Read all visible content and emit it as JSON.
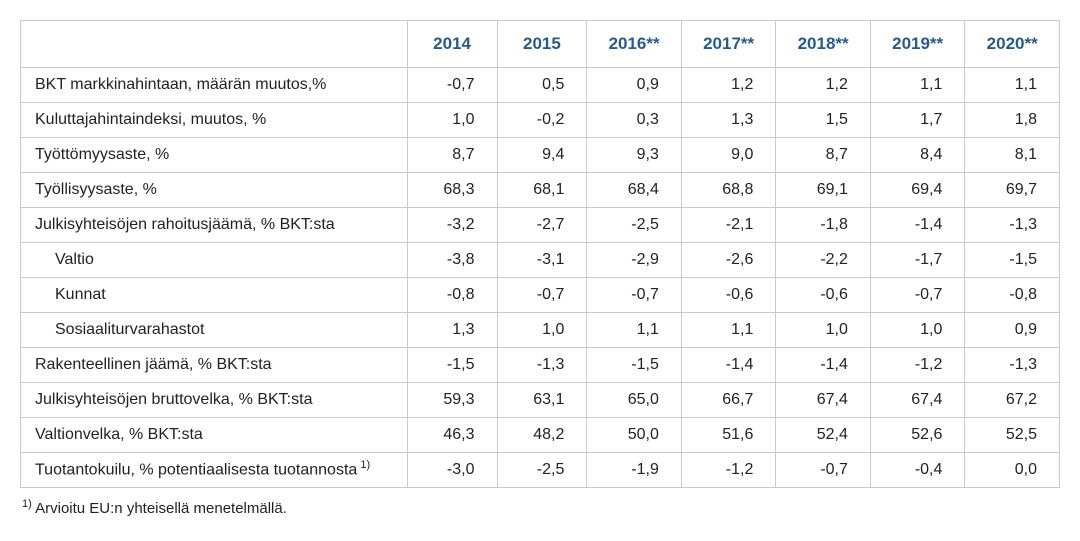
{
  "columns": [
    "2014",
    "2015",
    "2016**",
    "2017**",
    "2018**",
    "2019**",
    "2020**"
  ],
  "rows": [
    {
      "label": "BKT markkinahintaan, määrän muutos,%",
      "indent": false,
      "vals": [
        "-0,7",
        "0,5",
        "0,9",
        "1,2",
        "1,2",
        "1,1",
        "1,1"
      ]
    },
    {
      "label": "Kuluttajahintaindeksi, muutos, %",
      "indent": false,
      "vals": [
        "1,0",
        "-0,2",
        "0,3",
        "1,3",
        "1,5",
        "1,7",
        "1,8"
      ]
    },
    {
      "label": "Työttömyysaste, %",
      "indent": false,
      "vals": [
        "8,7",
        "9,4",
        "9,3",
        "9,0",
        "8,7",
        "8,4",
        "8,1"
      ]
    },
    {
      "label": "Työllisyysaste, %",
      "indent": false,
      "vals": [
        "68,3",
        "68,1",
        "68,4",
        "68,8",
        "69,1",
        "69,4",
        "69,7"
      ]
    },
    {
      "label": "Julkisyhteisöjen rahoitusjäämä, % BKT:sta",
      "indent": false,
      "vals": [
        "-3,2",
        "-2,7",
        "-2,5",
        "-2,1",
        "-1,8",
        "-1,4",
        "-1,3"
      ]
    },
    {
      "label": "Valtio",
      "indent": true,
      "vals": [
        "-3,8",
        "-3,1",
        "-2,9",
        "-2,6",
        "-2,2",
        "-1,7",
        "-1,5"
      ]
    },
    {
      "label": "Kunnat",
      "indent": true,
      "vals": [
        "-0,8",
        "-0,7",
        "-0,7",
        "-0,6",
        "-0,6",
        "-0,7",
        "-0,8"
      ]
    },
    {
      "label": "Sosiaaliturvarahastot",
      "indent": true,
      "vals": [
        "1,3",
        "1,0",
        "1,1",
        "1,1",
        "1,0",
        "1,0",
        "0,9"
      ]
    },
    {
      "label": "Rakenteellinen jäämä, % BKT:sta",
      "indent": false,
      "vals": [
        "-1,5",
        "-1,3",
        "-1,5",
        "-1,4",
        "-1,4",
        "-1,2",
        "-1,3"
      ]
    },
    {
      "label": "Julkisyhteisöjen bruttovelka, % BKT:sta",
      "indent": false,
      "vals": [
        "59,3",
        "63,1",
        "65,0",
        "66,7",
        "67,4",
        "67,4",
        "67,2"
      ]
    },
    {
      "label": "Valtionvelka, % BKT:sta",
      "indent": false,
      "vals": [
        "46,3",
        "48,2",
        "50,0",
        "51,6",
        "52,4",
        "52,6",
        "52,5"
      ]
    },
    {
      "label": "Tuotantokuilu, % potentiaalisesta tuotannosta",
      "sup": "1)",
      "indent": false,
      "vals": [
        "-3,0",
        "-2,5",
        "-1,9",
        "-1,2",
        "-0,7",
        "-0,4",
        "0,0"
      ]
    }
  ],
  "footnote_marker": "1)",
  "footnote_text": " Arvioitu EU:n yhteisellä menetelmällä."
}
